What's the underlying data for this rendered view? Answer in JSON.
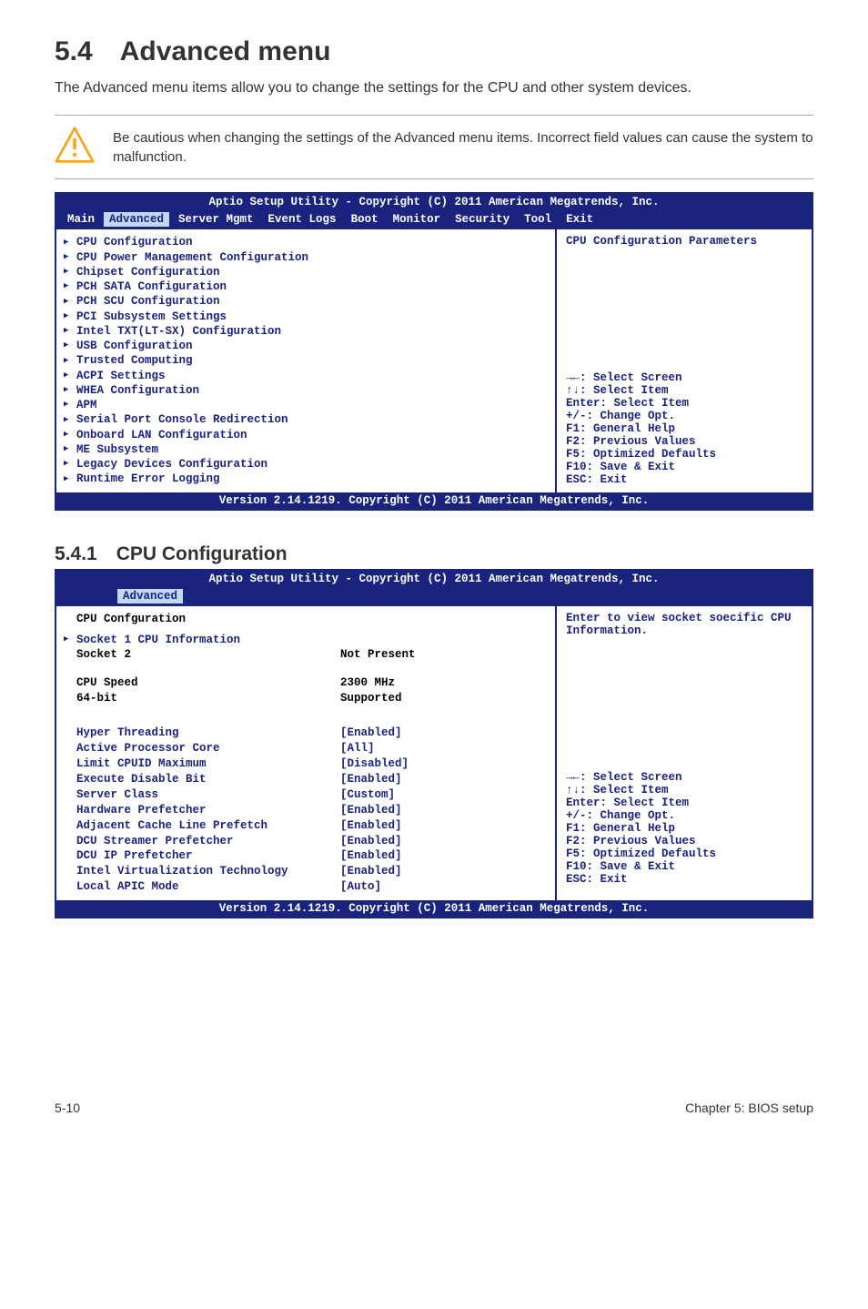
{
  "heading": "5.4 Advanced menu",
  "intro": "The Advanced menu items allow you to change the settings for the CPU and other system devices.",
  "caution": "Be cautious when changing the settings of the Advanced menu items. Incorrect field values can cause the system to malfunction.",
  "bios": {
    "header": "Aptio Setup Utility - Copyright (C) 2011 American Megatrends, Inc.",
    "tabs": [
      "Main",
      "Advanced",
      "Server Mgmt",
      "Event Logs",
      "Boot",
      "Monitor",
      "Security",
      "Tool",
      "Exit"
    ],
    "active_tab": "Advanced",
    "box1": {
      "left_items": [
        "CPU Configuration",
        "CPU Power Management Configuration",
        "Chipset Configuration",
        "PCH SATA Configuration",
        "PCH SCU Configuration",
        "PCI Subsystem Settings",
        "Intel TXT(LT-SX) Configuration",
        "USB Configuration",
        "Trusted Computing",
        "ACPI Settings",
        "WHEA Configuration",
        "APM",
        "Serial Port Console Redirection",
        "Onboard LAN Configuration",
        "ME Subsystem",
        "Legacy Devices Configuration",
        "Runtime Error Logging"
      ],
      "right_top": "CPU Configuration Parameters",
      "right_bottom": [
        "→←: Select Screen",
        "↑↓:  Select Item",
        "Enter: Select Item",
        "+/-: Change Opt.",
        "F1: General Help",
        "F2: Previous Values",
        "F5: Optimized Defaults",
        "F10: Save & Exit",
        "ESC: Exit"
      ]
    },
    "footer": "Version 2.14.1219. Copyright (C) 2011 American Megatrends, Inc.",
    "box2": {
      "title": "CPU Confguration",
      "socket1": "Socket 1 CPU Information",
      "fields_black": [
        {
          "label": "Socket 2",
          "value": "Not Present"
        },
        {
          "label": "CPU Speed",
          "value": "2300 MHz"
        },
        {
          "label": "64-bit",
          "value": "Supported"
        }
      ],
      "fields_blue": [
        {
          "label": "Hyper Threading",
          "value": "[Enabled]"
        },
        {
          "label": "Active Processor Core",
          "value": "[All]"
        },
        {
          "label": "Limit CPUID Maximum",
          "value": "[Disabled]"
        },
        {
          "label": "Execute Disable Bit",
          "value": "[Enabled]"
        },
        {
          "label": "Server Class",
          "value": "[Custom]"
        },
        {
          "label": "Hardware Prefetcher",
          "value": "[Enabled]"
        },
        {
          "label": "Adjacent Cache Line Prefetch",
          "value": "[Enabled]"
        },
        {
          "label": "DCU Streamer Prefetcher",
          "value": "[Enabled]"
        },
        {
          "label": "DCU IP Prefetcher",
          "value": "[Enabled]"
        },
        {
          "label": "Intel Virtualization Technology",
          "value": "[Enabled]"
        },
        {
          "label": "Local APIC Mode",
          "value": "[Auto]"
        }
      ],
      "right_top": "Enter to view socket soecific CPU Information.",
      "right_bottom": [
        "→←: Select Screen",
        "↑↓:  Select Item",
        "Enter: Select Item",
        "+/-: Change Opt.",
        "F1: General Help",
        "F2: Previous Values",
        "F5: Optimized Defaults",
        "F10: Save & Exit",
        "ESC: Exit"
      ]
    }
  },
  "subheading": "5.4.1 CPU Configuration",
  "footer_left": "5-10",
  "footer_right": "Chapter 5: BIOS setup",
  "colors": {
    "bios_blue": "#1a237e",
    "tab_active_bg": "#c0d8f0",
    "caution_orange": "#f5a623"
  }
}
